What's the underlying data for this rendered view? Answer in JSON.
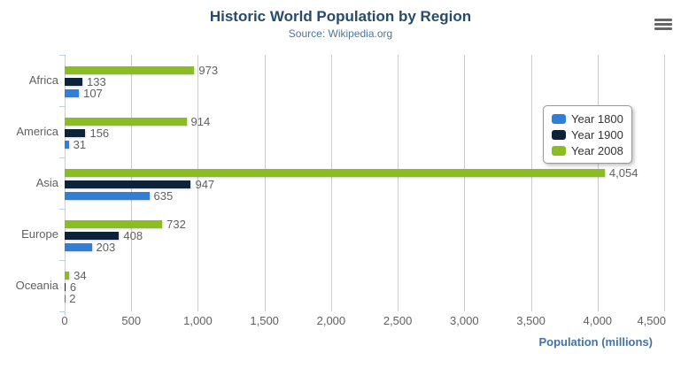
{
  "chart_data": {
    "type": "bar",
    "title": "Historic World Population by Region",
    "subtitle": "Source: Wikipedia.org",
    "categories": [
      "Africa",
      "America",
      "Asia",
      "Europe",
      "Oceania"
    ],
    "series": [
      {
        "name": "Year 1800",
        "color": "#2f7ed8",
        "values": [
          107,
          31,
          635,
          203,
          2
        ]
      },
      {
        "name": "Year 1900",
        "color": "#0d233a",
        "values": [
          133,
          156,
          947,
          408,
          6
        ]
      },
      {
        "name": "Year 2008",
        "color": "#8bbc21",
        "values": [
          973,
          914,
          4054,
          732,
          34
        ]
      }
    ],
    "bar_order_top_to_bottom": [
      "Year 2008",
      "Year 1900",
      "Year 1800"
    ],
    "data_labels_shown": true,
    "xlabel": "Population (millions)",
    "xlim": [
      0,
      4500
    ],
    "x_tick_values": [
      0,
      500,
      1000,
      1500,
      2000,
      2500,
      3000,
      3500,
      4000,
      4500
    ],
    "x_tick_labels": [
      "0",
      "500",
      "1,000",
      "1,500",
      "2,000",
      "2,500",
      "3,000",
      "3,500",
      "4,000",
      "4,500"
    ],
    "grid": true,
    "legend_position": "right",
    "legend_items": [
      "Year 1800",
      "Year 1900",
      "Year 2008"
    ]
  },
  "colors": {
    "title": "#274b6d",
    "subtitle": "#4d759e",
    "axis_title": "#4572a7",
    "labels": "#606060",
    "legend_text": "#333333",
    "gridline": "#cccccc",
    "axis_line": "#c0d0e0",
    "menu_icon": "#666666",
    "background": "#ffffff"
  },
  "menu": {
    "icon": "hamburger-icon"
  }
}
